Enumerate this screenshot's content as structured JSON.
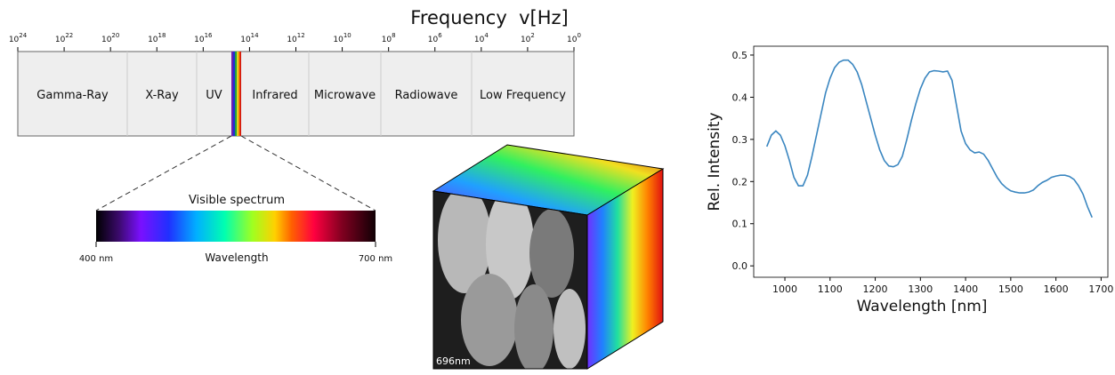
{
  "spectrum": {
    "title": "Frequency  v[Hz]",
    "ticks": [
      {
        "base": "10",
        "exponent": "24"
      },
      {
        "base": "10",
        "exponent": "22"
      },
      {
        "base": "10",
        "exponent": "20"
      },
      {
        "base": "10",
        "exponent": "18"
      },
      {
        "base": "10",
        "exponent": "16"
      },
      {
        "base": "10",
        "exponent": "14"
      },
      {
        "base": "10",
        "exponent": "12"
      },
      {
        "base": "10",
        "exponent": "10"
      },
      {
        "base": "10",
        "exponent": "8"
      },
      {
        "base": "10",
        "exponent": "6"
      },
      {
        "base": "10",
        "exponent": "4"
      },
      {
        "base": "10",
        "exponent": "2"
      },
      {
        "base": "10",
        "exponent": "0"
      }
    ],
    "bands": [
      "Gamma-Ray",
      "X-Ray",
      "UV",
      "Infrared",
      "Microwave",
      "Radiowave",
      "Low Frequency"
    ],
    "visible": {
      "title": "Visible spectrum",
      "start": "400 nm",
      "label": "Wavelength",
      "end": "700 nm"
    }
  },
  "cube": {
    "label": "696nm"
  },
  "chart_data": {
    "type": "line",
    "xlabel": "Wavelength [nm]",
    "ylabel": "Rel. Intensity",
    "x": [
      960,
      970,
      980,
      990,
      1000,
      1010,
      1020,
      1030,
      1040,
      1050,
      1060,
      1070,
      1080,
      1090,
      1100,
      1110,
      1120,
      1130,
      1140,
      1150,
      1160,
      1170,
      1180,
      1190,
      1200,
      1210,
      1220,
      1230,
      1240,
      1250,
      1260,
      1270,
      1280,
      1290,
      1300,
      1310,
      1320,
      1330,
      1340,
      1350,
      1360,
      1370,
      1380,
      1390,
      1400,
      1410,
      1420,
      1430,
      1440,
      1450,
      1460,
      1470,
      1480,
      1490,
      1500,
      1510,
      1520,
      1530,
      1540,
      1550,
      1560,
      1570,
      1580,
      1590,
      1600,
      1610,
      1620,
      1630,
      1640,
      1650,
      1660,
      1670,
      1680
    ],
    "series": [
      {
        "color": "#3a86c0",
        "values": [
          0.283,
          0.31,
          0.32,
          0.31,
          0.285,
          0.25,
          0.21,
          0.19,
          0.19,
          0.215,
          0.26,
          0.31,
          0.36,
          0.41,
          0.445,
          0.47,
          0.483,
          0.488,
          0.488,
          0.478,
          0.46,
          0.43,
          0.39,
          0.35,
          0.31,
          0.275,
          0.25,
          0.237,
          0.235,
          0.24,
          0.26,
          0.3,
          0.345,
          0.385,
          0.42,
          0.445,
          0.46,
          0.463,
          0.462,
          0.46,
          0.462,
          0.44,
          0.38,
          0.32,
          0.29,
          0.275,
          0.268,
          0.27,
          0.265,
          0.25,
          0.23,
          0.21,
          0.195,
          0.185,
          0.178,
          0.175,
          0.173,
          0.173,
          0.175,
          0.18,
          0.19,
          0.198,
          0.203,
          0.21,
          0.213,
          0.215,
          0.215,
          0.212,
          0.205,
          0.19,
          0.17,
          0.14,
          0.115
        ]
      }
    ],
    "xlim": [
      931,
      1715
    ],
    "ylim": [
      -0.027,
      0.521
    ],
    "xticks": [
      1000,
      1100,
      1200,
      1300,
      1400,
      1500,
      1600,
      1700
    ],
    "yticks": [
      {
        "value": 0,
        "label": "0.0"
      },
      0.1,
      0.2,
      0.3,
      0.4,
      0.5
    ]
  }
}
